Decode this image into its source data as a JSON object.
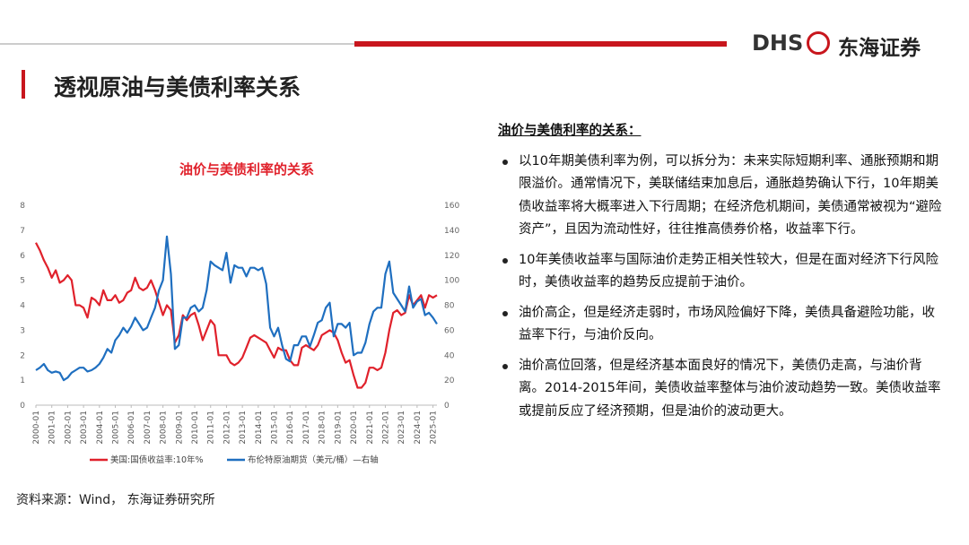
{
  "header": {
    "logo_abbr": "DHS",
    "logo_name": "东海证券",
    "title": "透视原油与美债利率关系"
  },
  "chart_data": {
    "type": "line",
    "title": "油价与美债利率的关系",
    "x": [
      "2000-01",
      "2000-04",
      "2000-07",
      "2000-10",
      "2001-01",
      "2001-04",
      "2001-07",
      "2001-10",
      "2002-01",
      "2002-04",
      "2002-07",
      "2002-10",
      "2003-01",
      "2003-04",
      "2003-07",
      "2003-10",
      "2004-01",
      "2004-04",
      "2004-07",
      "2004-10",
      "2005-01",
      "2005-04",
      "2005-07",
      "2005-10",
      "2006-01",
      "2006-04",
      "2006-07",
      "2006-10",
      "2007-01",
      "2007-04",
      "2007-07",
      "2007-10",
      "2008-01",
      "2008-04",
      "2008-07",
      "2008-10",
      "2009-01",
      "2009-04",
      "2009-07",
      "2009-10",
      "2010-01",
      "2010-04",
      "2010-07",
      "2010-10",
      "2011-01",
      "2011-04",
      "2011-07",
      "2011-10",
      "2012-01",
      "2012-04",
      "2012-07",
      "2012-10",
      "2013-01",
      "2013-04",
      "2013-07",
      "2013-10",
      "2014-01",
      "2014-04",
      "2014-07",
      "2014-10",
      "2015-01",
      "2015-04",
      "2015-07",
      "2015-10",
      "2016-01",
      "2016-04",
      "2016-07",
      "2016-10",
      "2017-01",
      "2017-04",
      "2017-07",
      "2017-10",
      "2018-01",
      "2018-04",
      "2018-07",
      "2018-10",
      "2019-01",
      "2019-04",
      "2019-07",
      "2019-10",
      "2020-01",
      "2020-04",
      "2020-07",
      "2020-10",
      "2021-01",
      "2021-04",
      "2021-07",
      "2021-10",
      "2022-01",
      "2022-04",
      "2022-07",
      "2022-10",
      "2023-01",
      "2023-04",
      "2023-07",
      "2023-10",
      "2024-01",
      "2024-04",
      "2024-07",
      "2024-10",
      "2025-01",
      "2025-04"
    ],
    "series": [
      {
        "name": "美国:国债收益率:10年%",
        "color": "#e0212b",
        "values": [
          6.5,
          6.2,
          5.8,
          5.5,
          5.1,
          5.4,
          4.9,
          5.0,
          5.2,
          5.0,
          4.0,
          4.0,
          3.9,
          3.5,
          4.3,
          4.2,
          4.0,
          4.6,
          4.2,
          4.2,
          4.4,
          4.1,
          4.2,
          4.5,
          4.6,
          5.1,
          4.7,
          4.6,
          4.7,
          5.0,
          4.6,
          4.1,
          3.6,
          4.0,
          3.8,
          2.5,
          2.8,
          3.6,
          3.4,
          3.6,
          3.7,
          3.2,
          2.6,
          3.0,
          3.4,
          3.2,
          2.0,
          2.0,
          2.0,
          1.7,
          1.6,
          1.7,
          1.9,
          2.3,
          2.7,
          2.8,
          2.7,
          2.6,
          2.5,
          2.2,
          1.9,
          2.3,
          2.2,
          2.2,
          1.8,
          1.6,
          1.6,
          2.3,
          2.4,
          2.3,
          2.2,
          2.4,
          2.8,
          2.9,
          3.0,
          2.9,
          2.6,
          2.1,
          1.7,
          1.8,
          1.2,
          0.7,
          0.7,
          0.9,
          1.5,
          1.5,
          1.4,
          1.5,
          2.1,
          3.0,
          3.7,
          3.8,
          3.6,
          3.7,
          4.4,
          4.0,
          4.2,
          4.4,
          3.9,
          4.4,
          4.3,
          4.4
        ]
      },
      {
        "name": "布伦特原油期货（美元/桶）—右轴",
        "color": "#1f6fc0",
        "axis": "y2",
        "values": [
          28,
          30,
          33,
          28,
          26,
          27,
          26,
          20,
          22,
          26,
          28,
          30,
          30,
          27,
          28,
          30,
          33,
          38,
          45,
          42,
          52,
          56,
          62,
          58,
          63,
          70,
          65,
          60,
          62,
          70,
          78,
          92,
          100,
          135,
          105,
          45,
          48,
          70,
          70,
          78,
          80,
          75,
          78,
          92,
          115,
          112,
          110,
          108,
          122,
          98,
          112,
          110,
          110,
          103,
          110,
          110,
          108,
          110,
          97,
          62,
          55,
          62,
          48,
          37,
          35,
          48,
          48,
          55,
          55,
          47,
          56,
          66,
          68,
          78,
          82,
          55,
          65,
          65,
          62,
          66,
          40,
          42,
          42,
          50,
          65,
          75,
          78,
          78,
          105,
          115,
          90,
          85,
          80,
          75,
          95,
          78,
          83,
          85,
          72,
          74,
          70,
          65
        ]
      }
    ],
    "xticks": [
      "2000-01",
      "2001-01",
      "2002-01",
      "2003-01",
      "2004-01",
      "2005-01",
      "2006-01",
      "2007-01",
      "2008-01",
      "2009-01",
      "2010-01",
      "2011-01",
      "2012-01",
      "2013-01",
      "2014-01",
      "2015-01",
      "2016-01",
      "2017-01",
      "2018-01",
      "2019-01",
      "2020-01",
      "2021-01",
      "2022-01",
      "2023-01",
      "2024-01",
      "2025-01"
    ],
    "ylim": [
      0,
      8
    ],
    "yticks": [
      0,
      1,
      2,
      3,
      4,
      5,
      6,
      7,
      8
    ],
    "y2lim": [
      0,
      160
    ],
    "y2ticks": [
      0,
      20,
      40,
      60,
      80,
      100,
      120,
      140,
      160
    ],
    "grid": false
  },
  "notes": {
    "heading": "油价与美债利率的关系：",
    "bullets": [
      "以10年期美债利率为例，可以拆分为：未来实际短期利率、通胀预期和期限溢价。通常情况下，美联储结束加息后，通胀趋势确认下行，10年期美债收益率将大概率进入下行周期；在经济危机期间，美债通常被视为“避险资产”，且因为流动性好，往往推高债券价格，收益率下行。",
      "10年美债收益率与国际油价走势正相关性较大，但是在面对经济下行风险时，美债收益率的趋势反应提前于油价。",
      "油价高企，但是经济走弱时，市场风险偏好下降，美债具备避险功能，收益率下行，与油价反向。",
      "油价高位回落，但是经济基本面良好的情况下，美债仍走高，与油价背离。2014-2015年间，美债收益率整体与油价波动趋势一致。美债收益率或提前反应了经济预期，但是油价的波动更大。"
    ]
  },
  "source": "资料来源：Wind， 东海证券研究所"
}
